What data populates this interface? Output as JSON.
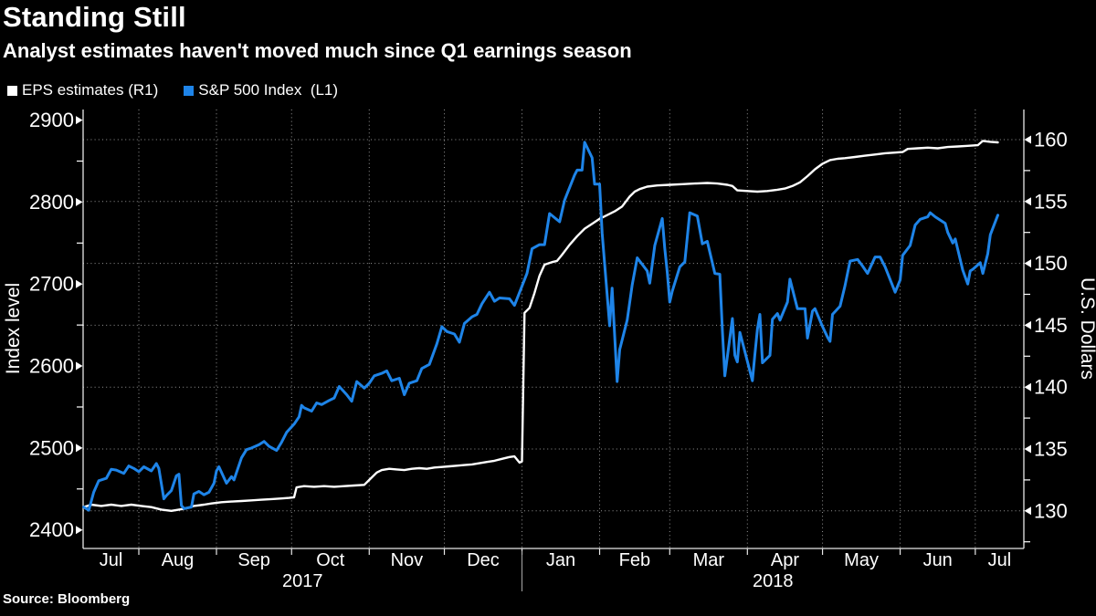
{
  "header": {
    "title": "Standing Still",
    "subtitle": "Analyst estimates haven't moved much since Q1 earnings season"
  },
  "legend": [
    {
      "label": "EPS estimates (R1)",
      "color": "#ffffff"
    },
    {
      "label": "S&P 500 Index  (L1)",
      "color": "#1e84e8"
    }
  ],
  "source": "Source: Bloomberg",
  "colors": {
    "background": "#000000",
    "axis": "#e8e8e8",
    "grid": "#969696",
    "spx_blue": "#1e84e8",
    "eps_white": "#ffffff"
  },
  "chart_data": {
    "type": "line",
    "title": "Standing Still",
    "left_axis": {
      "title": "Index level",
      "min": 2400,
      "max": 2900,
      "ticks": [
        2400,
        2500,
        2600,
        2700,
        2800,
        2900
      ],
      "minor_ticks": [
        2450,
        2550,
        2650,
        2750,
        2850
      ]
    },
    "right_axis": {
      "title": "U.S. Dollars",
      "min": 130,
      "max": 160,
      "ticks": [
        130,
        135,
        140,
        145,
        150,
        155,
        160
      ],
      "minor_ticks": [
        127.5,
        132.5,
        137.5,
        142.5,
        147.5,
        152.5,
        157.5
      ]
    },
    "x_axis": {
      "months": [
        "Jul",
        "Aug",
        "Sep",
        "Oct",
        "Nov",
        "Dec",
        "Jan",
        "Feb",
        "Mar",
        "Apr",
        "May",
        "Jun",
        "Jul"
      ],
      "month_start_days": [
        0,
        31,
        62,
        92,
        123,
        153,
        184,
        215,
        243,
        274,
        304,
        335,
        365
      ],
      "end_day": 396,
      "years": [
        {
          "label": "2017",
          "start_day": 0,
          "end_day": 184
        },
        {
          "label": "2018",
          "start_day": 184,
          "end_day": 396
        }
      ],
      "year_divider_day": 184
    },
    "grid": {
      "horizontal": "right_axis_ticks",
      "vertical": "month_starts",
      "style": "dotted"
    },
    "legend_position": "top-left",
    "series": [
      {
        "name": "S&P 500 Index",
        "legend_label": "S&P 500 Index  (L1)",
        "axis": "left",
        "color": "#1e84e8",
        "points": [
          [
            9,
            2428
          ],
          [
            11,
            2424
          ],
          [
            13,
            2446
          ],
          [
            15,
            2460
          ],
          [
            18,
            2463
          ],
          [
            20,
            2474
          ],
          [
            22,
            2473
          ],
          [
            25,
            2469
          ],
          [
            27,
            2478
          ],
          [
            29,
            2475
          ],
          [
            31,
            2471
          ],
          [
            33,
            2477
          ],
          [
            36,
            2472
          ],
          [
            38,
            2481
          ],
          [
            39,
            2475
          ],
          [
            41,
            2438
          ],
          [
            42,
            2442
          ],
          [
            44,
            2448
          ],
          [
            46,
            2466
          ],
          [
            47,
            2468
          ],
          [
            48,
            2430
          ],
          [
            49,
            2426
          ],
          [
            52,
            2428
          ],
          [
            53,
            2444
          ],
          [
            55,
            2447
          ],
          [
            57,
            2443
          ],
          [
            59,
            2446
          ],
          [
            61,
            2457
          ],
          [
            62,
            2472
          ],
          [
            63,
            2477
          ],
          [
            66,
            2457
          ],
          [
            68,
            2465
          ],
          [
            69,
            2461
          ],
          [
            72,
            2488
          ],
          [
            74,
            2498
          ],
          [
            76,
            2500
          ],
          [
            79,
            2504
          ],
          [
            81,
            2508
          ],
          [
            83,
            2502
          ],
          [
            86,
            2497
          ],
          [
            88,
            2507
          ],
          [
            90,
            2519
          ],
          [
            93,
            2529
          ],
          [
            95,
            2538
          ],
          [
            96,
            2552
          ],
          [
            97,
            2549
          ],
          [
            100,
            2545
          ],
          [
            102,
            2555
          ],
          [
            104,
            2553
          ],
          [
            107,
            2558
          ],
          [
            109,
            2561
          ],
          [
            111,
            2575
          ],
          [
            114,
            2565
          ],
          [
            116,
            2557
          ],
          [
            118,
            2581
          ],
          [
            121,
            2573
          ],
          [
            123,
            2579
          ],
          [
            125,
            2588
          ],
          [
            128,
            2591
          ],
          [
            130,
            2594
          ],
          [
            132,
            2582
          ],
          [
            135,
            2585
          ],
          [
            137,
            2565
          ],
          [
            139,
            2579
          ],
          [
            142,
            2582
          ],
          [
            144,
            2597
          ],
          [
            147,
            2602
          ],
          [
            150,
            2627
          ],
          [
            152,
            2648
          ],
          [
            154,
            2642
          ],
          [
            157,
            2639
          ],
          [
            159,
            2629
          ],
          [
            161,
            2652
          ],
          [
            164,
            2660
          ],
          [
            166,
            2663
          ],
          [
            168,
            2676
          ],
          [
            171,
            2690
          ],
          [
            173,
            2679
          ],
          [
            175,
            2683
          ],
          [
            179,
            2682
          ],
          [
            181,
            2674
          ],
          [
            186,
            2713
          ],
          [
            188,
            2743
          ],
          [
            191,
            2748
          ],
          [
            193,
            2748
          ],
          [
            195,
            2786
          ],
          [
            199,
            2776
          ],
          [
            201,
            2802
          ],
          [
            202,
            2810
          ],
          [
            205,
            2833
          ],
          [
            206,
            2839
          ],
          [
            208,
            2839
          ],
          [
            209,
            2873
          ],
          [
            212,
            2854
          ],
          [
            213,
            2822
          ],
          [
            215,
            2822
          ],
          [
            216,
            2762
          ],
          [
            219,
            2649
          ],
          [
            220,
            2695
          ],
          [
            222,
            2581
          ],
          [
            223,
            2620
          ],
          [
            226,
            2656
          ],
          [
            228,
            2699
          ],
          [
            230,
            2732
          ],
          [
            234,
            2716
          ],
          [
            235,
            2701
          ],
          [
            237,
            2747
          ],
          [
            240,
            2780
          ],
          [
            241,
            2744
          ],
          [
            242,
            2714
          ],
          [
            243,
            2678
          ],
          [
            244,
            2691
          ],
          [
            247,
            2721
          ],
          [
            249,
            2727
          ],
          [
            251,
            2787
          ],
          [
            254,
            2783
          ],
          [
            256,
            2749
          ],
          [
            258,
            2752
          ],
          [
            261,
            2713
          ],
          [
            263,
            2712
          ],
          [
            264,
            2644
          ],
          [
            265,
            2588
          ],
          [
            268,
            2658
          ],
          [
            269,
            2613
          ],
          [
            270,
            2605
          ],
          [
            271,
            2641
          ],
          [
            276,
            2582
          ],
          [
            277,
            2614
          ],
          [
            278,
            2645
          ],
          [
            279,
            2663
          ],
          [
            280,
            2604
          ],
          [
            283,
            2613
          ],
          [
            284,
            2657
          ],
          [
            286,
            2664
          ],
          [
            287,
            2656
          ],
          [
            290,
            2678
          ],
          [
            291,
            2706
          ],
          [
            294,
            2670
          ],
          [
            297,
            2670
          ],
          [
            298,
            2634
          ],
          [
            300,
            2667
          ],
          [
            301,
            2670
          ],
          [
            304,
            2648
          ],
          [
            306,
            2635
          ],
          [
            307,
            2630
          ],
          [
            308,
            2663
          ],
          [
            311,
            2673
          ],
          [
            313,
            2698
          ],
          [
            315,
            2728
          ],
          [
            318,
            2730
          ],
          [
            320,
            2722
          ],
          [
            322,
            2713
          ],
          [
            325,
            2733
          ],
          [
            327,
            2733
          ],
          [
            329,
            2721
          ],
          [
            333,
            2690
          ],
          [
            335,
            2705
          ],
          [
            336,
            2735
          ],
          [
            339,
            2747
          ],
          [
            341,
            2772
          ],
          [
            343,
            2779
          ],
          [
            346,
            2782
          ],
          [
            347,
            2787
          ],
          [
            349,
            2782
          ],
          [
            350,
            2780
          ],
          [
            353,
            2774
          ],
          [
            354,
            2763
          ],
          [
            356,
            2750
          ],
          [
            357,
            2755
          ],
          [
            360,
            2717
          ],
          [
            362,
            2700
          ],
          [
            363,
            2716
          ],
          [
            364,
            2718
          ],
          [
            367,
            2726
          ],
          [
            368,
            2713
          ],
          [
            370,
            2737
          ],
          [
            371,
            2760
          ],
          [
            374,
            2784
          ]
        ]
      },
      {
        "name": "EPS estimates",
        "legend_label": "EPS estimates (R1)",
        "axis": "right",
        "color": "#ffffff",
        "points": [
          [
            9,
            130.3
          ],
          [
            12,
            130.5
          ],
          [
            16,
            130.4
          ],
          [
            20,
            130.5
          ],
          [
            24,
            130.4
          ],
          [
            28,
            130.5
          ],
          [
            32,
            130.4
          ],
          [
            36,
            130.3
          ],
          [
            40,
            130.1
          ],
          [
            44,
            130.0
          ],
          [
            47,
            130.1
          ],
          [
            50,
            130.2
          ],
          [
            53,
            130.4
          ],
          [
            57,
            130.5
          ],
          [
            60,
            130.6
          ],
          [
            64,
            130.7
          ],
          [
            68,
            130.75
          ],
          [
            72,
            130.8
          ],
          [
            76,
            130.85
          ],
          [
            80,
            130.9
          ],
          [
            84,
            130.95
          ],
          [
            88,
            131.0
          ],
          [
            91,
            131.05
          ],
          [
            93,
            131.1
          ],
          [
            94,
            131.9
          ],
          [
            97,
            132.0
          ],
          [
            101,
            131.95
          ],
          [
            105,
            132.0
          ],
          [
            109,
            131.95
          ],
          [
            113,
            132.0
          ],
          [
            117,
            132.05
          ],
          [
            121,
            132.1
          ],
          [
            123,
            132.5
          ],
          [
            126,
            133.1
          ],
          [
            128,
            133.3
          ],
          [
            131,
            133.4
          ],
          [
            134,
            133.35
          ],
          [
            137,
            133.3
          ],
          [
            140,
            133.4
          ],
          [
            143,
            133.45
          ],
          [
            146,
            133.4
          ],
          [
            149,
            133.5
          ],
          [
            152,
            133.55
          ],
          [
            155,
            133.6
          ],
          [
            158,
            133.65
          ],
          [
            161,
            133.7
          ],
          [
            164,
            133.75
          ],
          [
            167,
            133.85
          ],
          [
            170,
            133.95
          ],
          [
            173,
            134.05
          ],
          [
            176,
            134.2
          ],
          [
            179,
            134.35
          ],
          [
            181,
            134.4
          ],
          [
            183,
            133.9
          ],
          [
            184,
            134.0
          ],
          [
            185,
            146.0
          ],
          [
            187,
            146.4
          ],
          [
            189,
            147.6
          ],
          [
            191,
            149.0
          ],
          [
            193,
            149.9
          ],
          [
            196,
            150.1
          ],
          [
            198,
            150.2
          ],
          [
            200,
            150.7
          ],
          [
            203,
            151.5
          ],
          [
            206,
            152.2
          ],
          [
            209,
            152.8
          ],
          [
            212,
            153.2
          ],
          [
            215,
            153.6
          ],
          [
            218,
            153.9
          ],
          [
            221,
            154.2
          ],
          [
            224,
            154.6
          ],
          [
            227,
            155.4
          ],
          [
            229,
            155.8
          ],
          [
            231,
            156.0
          ],
          [
            234,
            156.2
          ],
          [
            238,
            156.3
          ],
          [
            243,
            156.35
          ],
          [
            248,
            156.4
          ],
          [
            253,
            156.45
          ],
          [
            258,
            156.5
          ],
          [
            262,
            156.45
          ],
          [
            266,
            156.35
          ],
          [
            268,
            156.25
          ],
          [
            270,
            155.9
          ],
          [
            274,
            155.85
          ],
          [
            278,
            155.8
          ],
          [
            282,
            155.85
          ],
          [
            286,
            155.95
          ],
          [
            289,
            156.05
          ],
          [
            292,
            156.25
          ],
          [
            295,
            156.55
          ],
          [
            298,
            157.05
          ],
          [
            301,
            157.6
          ],
          [
            304,
            158.05
          ],
          [
            307,
            158.35
          ],
          [
            310,
            158.45
          ],
          [
            313,
            158.5
          ],
          [
            317,
            158.6
          ],
          [
            321,
            158.7
          ],
          [
            325,
            158.8
          ],
          [
            329,
            158.9
          ],
          [
            333,
            158.95
          ],
          [
            336,
            159.0
          ],
          [
            338,
            159.25
          ],
          [
            342,
            159.3
          ],
          [
            346,
            159.35
          ],
          [
            350,
            159.3
          ],
          [
            354,
            159.4
          ],
          [
            358,
            159.45
          ],
          [
            362,
            159.5
          ],
          [
            366,
            159.55
          ],
          [
            368,
            159.9
          ],
          [
            371,
            159.82
          ],
          [
            374,
            159.78
          ]
        ]
      }
    ]
  }
}
